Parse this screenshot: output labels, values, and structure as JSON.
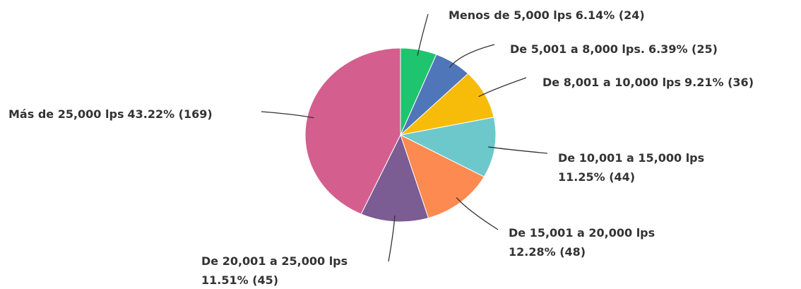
{
  "chart_data": {
    "type": "pie",
    "categories": [
      "Menos de 5,000 lps",
      "De 5,001 a 8,000 lps.",
      "De 8,001 a 10,000 lps",
      "De 10,001 a 15,000 lps",
      "De 15,001 a 20,000 lps",
      "De 20,001 a 25,000 lps",
      "Más de 25,000 lps"
    ],
    "values": [
      6.14,
      6.39,
      9.21,
      11.25,
      12.28,
      11.51,
      43.22
    ],
    "value_labels": [
      "6.14% (24)",
      "6.39% (25)",
      "9.21% (36)",
      "11.25% (44)",
      "12.28% (48)",
      "11.51% (45)",
      "43.22% (169)"
    ],
    "colors": [
      "#1fc46f",
      "#4f76b8",
      "#f7bc0a",
      "#6dc8cc",
      "#fd8a50",
      "#7b5c93",
      "#d45f8e"
    ]
  }
}
